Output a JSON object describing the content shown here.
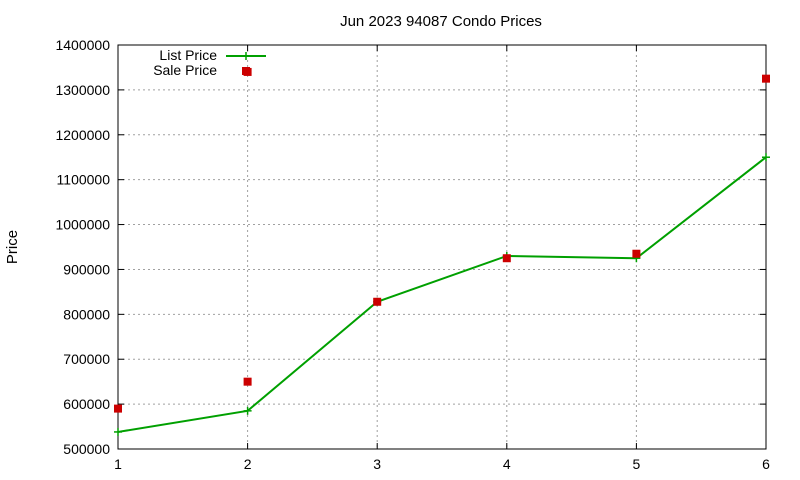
{
  "chart_data": {
    "type": "line",
    "title": "Jun 2023 94087 Condo Prices",
    "xlabel": "",
    "ylabel": "Price",
    "x": [
      1,
      2,
      3,
      4,
      5,
      6
    ],
    "xlim": [
      1,
      6
    ],
    "ylim": [
      500000,
      1400000
    ],
    "yticks": [
      500000,
      600000,
      700000,
      800000,
      900000,
      1000000,
      1100000,
      1200000,
      1300000,
      1400000
    ],
    "xticks": [
      1,
      2,
      3,
      4,
      5,
      6
    ],
    "grid": true,
    "legend_position": "top-left",
    "series": [
      {
        "name": "List Price",
        "style": "line-with-plus-markers",
        "color": "#00a000",
        "values": [
          538000,
          585000,
          828000,
          930000,
          925000,
          1150000
        ]
      },
      {
        "name": "Sale Price",
        "style": "square-markers",
        "color": "#cc0000",
        "values": [
          590000,
          650000,
          828000,
          925000,
          935000,
          1325000,
          1340000
        ],
        "x": [
          1,
          2,
          3,
          4,
          5,
          6,
          2
        ]
      }
    ]
  }
}
